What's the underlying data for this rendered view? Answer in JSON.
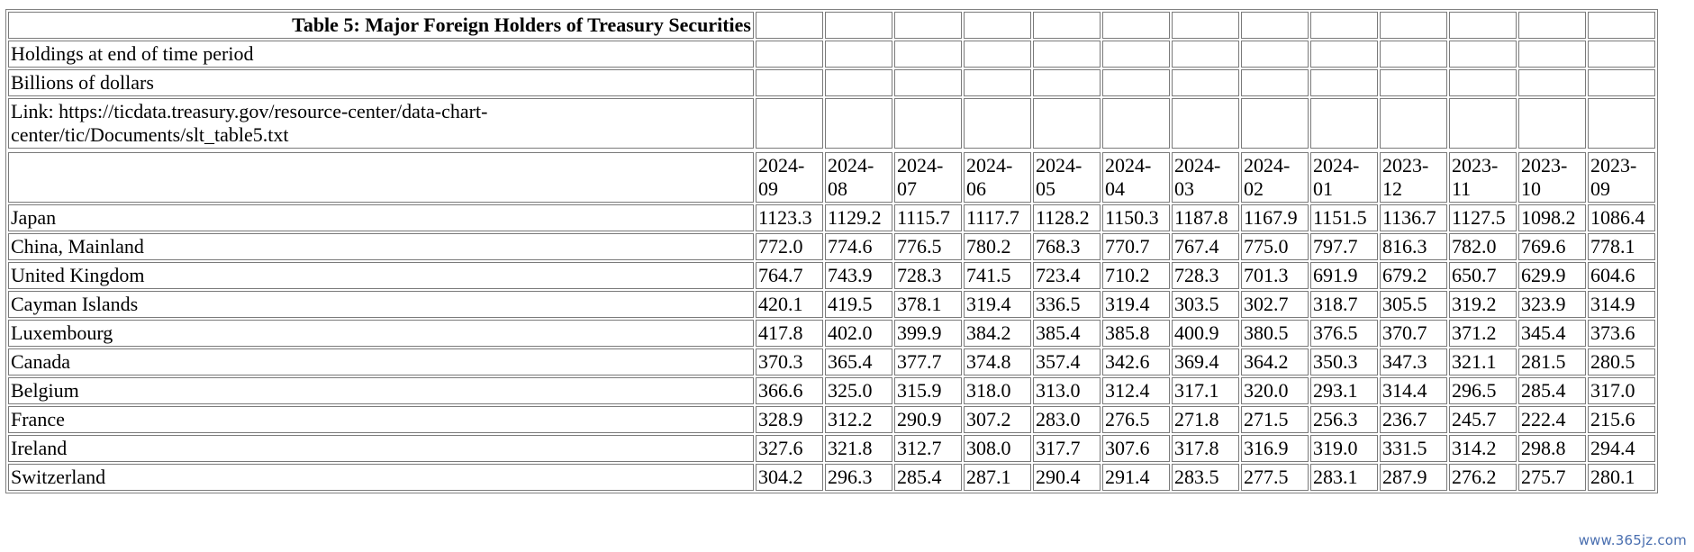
{
  "table": {
    "title": "Table 5: Major Foreign Holders of Treasury Securities",
    "notes": [
      "Holdings at end of time period",
      "Billions of dollars",
      "Link: https://ticdata.treasury.gov/resource-center/data-chart-center/tic/Documents/slt_table5.txt"
    ],
    "header_first": "",
    "periods": [
      "2024-09",
      "2024-08",
      "2024-07",
      "2024-06",
      "2024-05",
      "2024-04",
      "2024-03",
      "2024-02",
      "2024-01",
      "2023-12",
      "2023-11",
      "2023-10",
      "2023-09"
    ],
    "rows": [
      {
        "country": "Japan",
        "values": [
          "1123.3",
          "1129.2",
          "1115.7",
          "1117.7",
          "1128.2",
          "1150.3",
          "1187.8",
          "1167.9",
          "1151.5",
          "1136.7",
          "1127.5",
          "1098.2",
          "1086.4"
        ]
      },
      {
        "country": "China, Mainland",
        "values": [
          "772.0",
          "774.6",
          "776.5",
          "780.2",
          "768.3",
          "770.7",
          "767.4",
          "775.0",
          "797.7",
          "816.3",
          "782.0",
          "769.6",
          "778.1"
        ]
      },
      {
        "country": "United Kingdom",
        "values": [
          "764.7",
          "743.9",
          "728.3",
          "741.5",
          "723.4",
          "710.2",
          "728.3",
          "701.3",
          "691.9",
          "679.2",
          "650.7",
          "629.9",
          "604.6"
        ]
      },
      {
        "country": "Cayman Islands",
        "values": [
          "420.1",
          "419.5",
          "378.1",
          "319.4",
          "336.5",
          "319.4",
          "303.5",
          "302.7",
          "318.7",
          "305.5",
          "319.2",
          "323.9",
          "314.9"
        ]
      },
      {
        "country": "Luxembourg",
        "values": [
          "417.8",
          "402.0",
          "399.9",
          "384.2",
          "385.4",
          "385.8",
          "400.9",
          "380.5",
          "376.5",
          "370.7",
          "371.2",
          "345.4",
          "373.6"
        ]
      },
      {
        "country": "Canada",
        "values": [
          "370.3",
          "365.4",
          "377.7",
          "374.8",
          "357.4",
          "342.6",
          "369.4",
          "364.2",
          "350.3",
          "347.3",
          "321.1",
          "281.5",
          "280.5"
        ]
      },
      {
        "country": "Belgium",
        "values": [
          "366.6",
          "325.0",
          "315.9",
          "318.0",
          "313.0",
          "312.4",
          "317.1",
          "320.0",
          "293.1",
          "314.4",
          "296.5",
          "285.4",
          "317.0"
        ]
      },
      {
        "country": "France",
        "values": [
          "328.9",
          "312.2",
          "290.9",
          "307.2",
          "283.0",
          "276.5",
          "271.8",
          "271.5",
          "256.3",
          "236.7",
          "245.7",
          "222.4",
          "215.6"
        ]
      },
      {
        "country": "Ireland",
        "values": [
          "327.6",
          "321.8",
          "312.7",
          "308.0",
          "317.7",
          "307.6",
          "317.8",
          "316.9",
          "319.0",
          "331.5",
          "314.2",
          "298.8",
          "294.4"
        ]
      },
      {
        "country": "Switzerland",
        "values": [
          "304.2",
          "296.3",
          "285.4",
          "287.1",
          "290.4",
          "291.4",
          "283.5",
          "277.5",
          "283.1",
          "287.9",
          "276.2",
          "275.7",
          "280.1"
        ]
      }
    ]
  },
  "watermark": "www.365jz.com"
}
